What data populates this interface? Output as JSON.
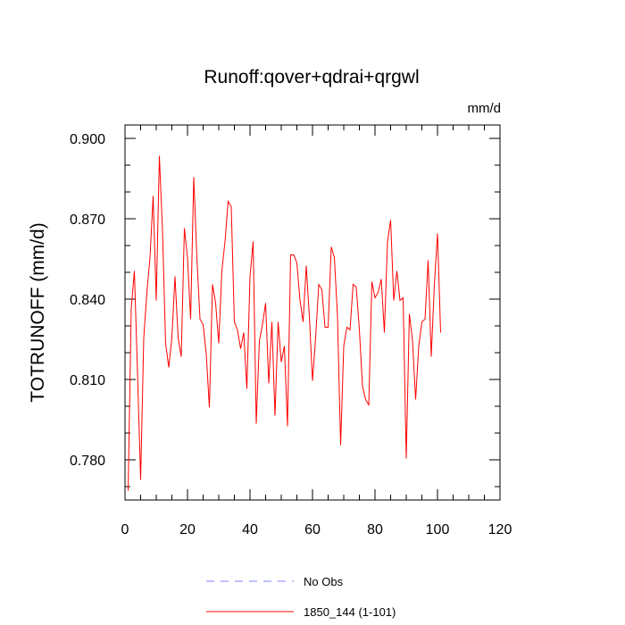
{
  "chart_data": {
    "type": "line",
    "title": "Runoff:qover+qdrai+qrgwl",
    "units": "mm/d",
    "xlabel": "",
    "ylabel": "TOTRUNOFF  (mm/d)",
    "xlim": [
      0,
      120
    ],
    "ylim": [
      0.765,
      0.905
    ],
    "x_ticks": [
      0,
      20,
      40,
      60,
      80,
      100,
      120
    ],
    "x_tick_labels": [
      "0",
      "20",
      "40",
      "60",
      "80",
      "100",
      "120"
    ],
    "y_ticks": [
      0.78,
      0.81,
      0.84,
      0.87,
      0.9
    ],
    "y_tick_labels": [
      "0.780",
      "0.810",
      "0.840",
      "0.870",
      "0.900"
    ],
    "grid": false,
    "legend_position": "bottom",
    "series": [
      {
        "name": "No Obs",
        "color": "#8080ff",
        "dash": "dashed",
        "x": [],
        "values": []
      },
      {
        "name": "1850_144 (1-101)",
        "color": "#ff0000",
        "dash": "solid",
        "x": [
          1,
          2,
          3,
          4,
          5,
          6,
          7,
          8,
          9,
          10,
          11,
          12,
          13,
          14,
          15,
          16,
          17,
          18,
          19,
          20,
          21,
          22,
          23,
          24,
          25,
          26,
          27,
          28,
          29,
          30,
          31,
          32,
          33,
          34,
          35,
          36,
          37,
          38,
          39,
          40,
          41,
          42,
          43,
          44,
          45,
          46,
          47,
          48,
          49,
          50,
          51,
          52,
          53,
          54,
          55,
          56,
          57,
          58,
          59,
          60,
          61,
          62,
          63,
          64,
          65,
          66,
          67,
          68,
          69,
          70,
          71,
          72,
          73,
          74,
          75,
          76,
          77,
          78,
          79,
          80,
          81,
          82,
          83,
          84,
          85,
          86,
          87,
          88,
          89,
          90,
          91,
          92,
          93,
          94,
          95,
          96,
          97,
          98,
          99,
          100,
          101
        ],
        "values": [
          0.7685,
          0.8365,
          0.8505,
          0.8125,
          0.7725,
          0.8255,
          0.8425,
          0.8555,
          0.8785,
          0.8395,
          0.8935,
          0.8655,
          0.8235,
          0.8145,
          0.8255,
          0.8485,
          0.8255,
          0.8185,
          0.8665,
          0.8555,
          0.8325,
          0.8855,
          0.8555,
          0.8325,
          0.8305,
          0.8195,
          0.7995,
          0.8455,
          0.8385,
          0.8235,
          0.8505,
          0.8615,
          0.8765,
          0.8745,
          0.8315,
          0.8285,
          0.8215,
          0.8275,
          0.8065,
          0.8485,
          0.8615,
          0.7935,
          0.8245,
          0.8305,
          0.8385,
          0.8085,
          0.8315,
          0.7965,
          0.8315,
          0.8165,
          0.8225,
          0.7925,
          0.8565,
          0.8565,
          0.8535,
          0.8395,
          0.8315,
          0.8525,
          0.8335,
          0.8095,
          0.8255,
          0.8455,
          0.8435,
          0.8295,
          0.8295,
          0.8595,
          0.8555,
          0.8335,
          0.7855,
          0.8225,
          0.8295,
          0.8285,
          0.8455,
          0.8445,
          0.8285,
          0.8075,
          0.8025,
          0.8005,
          0.8465,
          0.8405,
          0.8425,
          0.8475,
          0.8275,
          0.8615,
          0.8695,
          0.8395,
          0.8505,
          0.8395,
          0.8405,
          0.7805,
          0.8345,
          0.8245,
          0.8025,
          0.8225,
          0.8315,
          0.8325,
          0.8545,
          0.8185,
          0.8455,
          0.8645,
          0.8275
        ]
      }
    ]
  }
}
